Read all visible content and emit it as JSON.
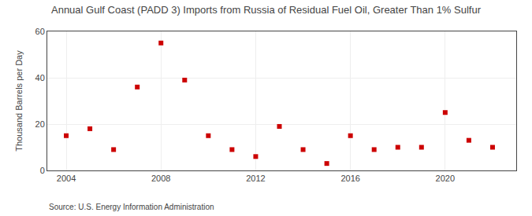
{
  "chart_data": {
    "type": "scatter",
    "title": "Annual Gulf Coast (PADD 3) Imports from Russia of Residual Fuel Oil, Greater Than 1% Sulfur",
    "y_label": "Thousand Barrels per Day",
    "annotations": [
      "Source: U.S. Energy Information Administration"
    ],
    "x": [
      2004,
      2005,
      2006,
      2007,
      2008,
      2009,
      2010,
      2011,
      2012,
      2013,
      2014,
      2015,
      2016,
      2017,
      2018,
      2019,
      2020,
      2021,
      2022
    ],
    "values": [
      15,
      18,
      9,
      36,
      55,
      39,
      15,
      9,
      6,
      19,
      9,
      3,
      15,
      9,
      10,
      10,
      25,
      13,
      10
    ],
    "color": "#cc0000",
    "marker": "square",
    "xlim": [
      2003.2,
      2023
    ],
    "ylim": [
      0,
      60
    ],
    "xticks": [
      2004,
      2008,
      2012,
      2016,
      2020
    ],
    "yticks": [
      0,
      20,
      40,
      60
    ],
    "grid": true
  }
}
